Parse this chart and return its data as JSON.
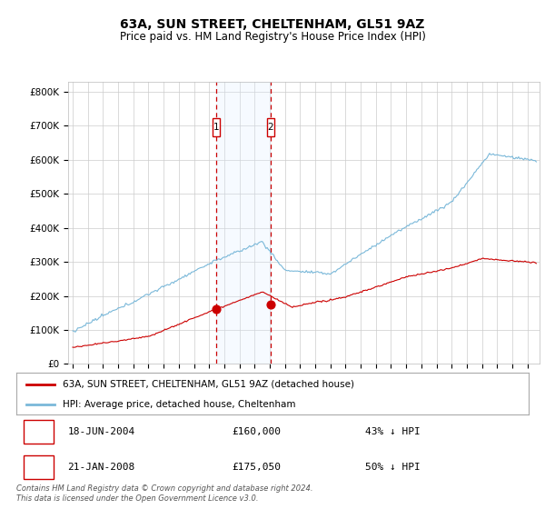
{
  "title": "63A, SUN STREET, CHELTENHAM, GL51 9AZ",
  "subtitle": "Price paid vs. HM Land Registry's House Price Index (HPI)",
  "ylabel_ticks": [
    "£0",
    "£100K",
    "£200K",
    "£300K",
    "£400K",
    "£500K",
    "£600K",
    "£700K",
    "£800K"
  ],
  "ytick_values": [
    0,
    100000,
    200000,
    300000,
    400000,
    500000,
    600000,
    700000,
    800000
  ],
  "ylim": [
    0,
    830000
  ],
  "xlim_start": 1994.7,
  "xlim_end": 2025.8,
  "hpi_color": "#7ab8d9",
  "price_color": "#cc0000",
  "sale1_date": 2004.46,
  "sale1_price": 160000,
  "sale2_date": 2008.05,
  "sale2_price": 175050,
  "highlight_color": "#ddeeff",
  "vline_color": "#cc0000",
  "legend_label_red": "63A, SUN STREET, CHELTENHAM, GL51 9AZ (detached house)",
  "legend_label_blue": "HPI: Average price, detached house, Cheltenham",
  "table_row1": [
    "1",
    "18-JUN-2004",
    "£160,000",
    "43% ↓ HPI"
  ],
  "table_row2": [
    "2",
    "21-JAN-2008",
    "£175,050",
    "50% ↓ HPI"
  ],
  "footer": "Contains HM Land Registry data © Crown copyright and database right 2024.\nThis data is licensed under the Open Government Licence v3.0.",
  "background_color": "#ffffff",
  "grid_color": "#cccccc"
}
